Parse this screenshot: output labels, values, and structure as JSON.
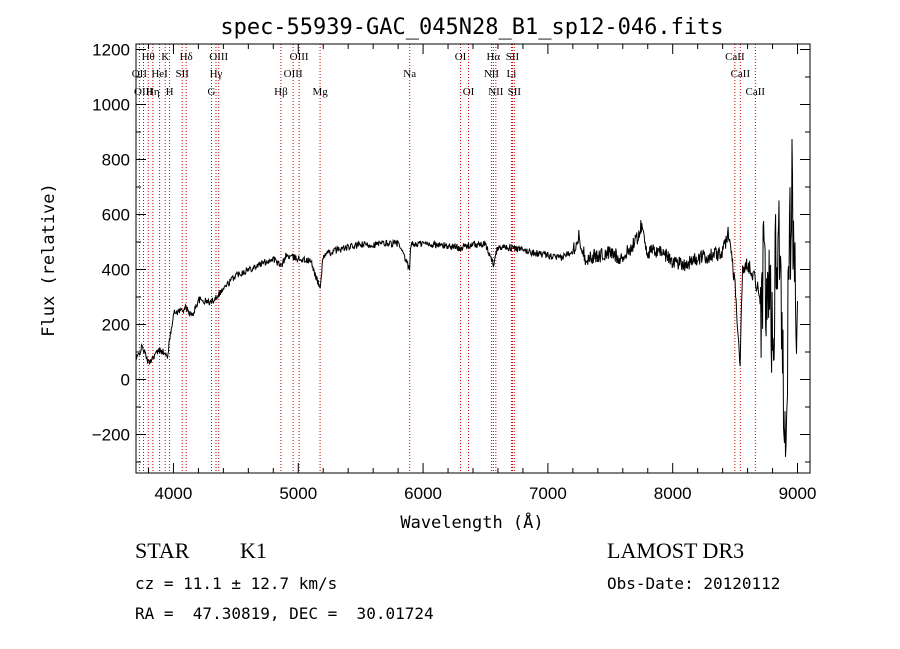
{
  "chart_data": {
    "type": "line",
    "title": "spec-55939-GAC_045N28_B1_sp12-046.fits",
    "xlabel": "Wavelength (Å)",
    "ylabel": "Flux (relative)",
    "xlim": [
      3700,
      9100
    ],
    "ylim": [
      -340,
      1220
    ],
    "x_ticks": [
      4000,
      5000,
      6000,
      7000,
      8000,
      9000
    ],
    "y_ticks": [
      -200,
      0,
      200,
      400,
      600,
      800,
      1000,
      1200
    ],
    "line_color": "#000000",
    "line_marker_color": "#cc0000",
    "grid": false,
    "series": [
      {
        "x": [
          3700,
          3750,
          3800,
          3850,
          3900,
          3950,
          4000,
          4050,
          4100,
          4150,
          4200,
          4300,
          4400,
          4500,
          4600,
          4700,
          4800,
          4862,
          4900,
          5000,
          5100,
          5175,
          5200,
          5300,
          5400,
          5500,
          5600,
          5700,
          5800,
          5893,
          5900,
          6000,
          6100,
          6200,
          6300,
          6400,
          6500,
          6563,
          6600,
          6700,
          6800,
          6900,
          7000,
          7100,
          7200,
          7250,
          7300,
          7400,
          7500,
          7600,
          7700,
          7750,
          7800,
          7900,
          8000,
          8100,
          8200,
          8300,
          8400,
          8450,
          8500,
          8540,
          8560,
          8600,
          8650,
          8700,
          8750,
          8800,
          8850,
          8900,
          8950,
          9000
        ],
        "y": [
          70,
          120,
          60,
          90,
          110,
          80,
          240,
          250,
          260,
          230,
          290,
          280,
          330,
          380,
          400,
          420,
          440,
          410,
          450,
          440,
          430,
          330,
          450,
          470,
          480,
          490,
          490,
          495,
          495,
          400,
          490,
          495,
          490,
          485,
          480,
          490,
          490,
          420,
          485,
          480,
          470,
          460,
          450,
          440,
          470,
          520,
          440,
          450,
          460,
          440,
          500,
          560,
          460,
          470,
          430,
          420,
          440,
          450,
          460,
          540,
          340,
          60,
          400,
          420,
          380,
          300,
          350,
          200,
          600,
          -200,
          700,
          200
        ]
      }
    ],
    "line_labels": [
      {
        "text": "Hθ",
        "x": 3798,
        "row": 1
      },
      {
        "text": "OII",
        "x": 3727,
        "row": 2
      },
      {
        "text": "OIII",
        "x": 3760,
        "row": 3
      },
      {
        "text": "K",
        "x": 3934,
        "row": 1
      },
      {
        "text": "HeI",
        "x": 3889,
        "row": 2
      },
      {
        "text": "Hη",
        "x": 3835,
        "row": 3
      },
      {
        "text": "SII",
        "x": 4070,
        "row": 2
      },
      {
        "text": "H",
        "x": 3969,
        "row": 3
      },
      {
        "text": "Hδ",
        "x": 4102,
        "row": 1
      },
      {
        "text": "OIII",
        "x": 4363,
        "row": 1
      },
      {
        "text": "Hγ",
        "x": 4341,
        "row": 2
      },
      {
        "text": "G",
        "x": 4305,
        "row": 3
      },
      {
        "text": "OIII",
        "x": 5007,
        "row": 1
      },
      {
        "text": "OIII",
        "x": 4959,
        "row": 2
      },
      {
        "text": "Hβ",
        "x": 4861,
        "row": 3
      },
      {
        "text": "Mg",
        "x": 5175,
        "row": 3
      },
      {
        "text": "Na",
        "x": 5893,
        "row": 2
      },
      {
        "text": "OI",
        "x": 6300,
        "row": 1
      },
      {
        "text": "OI",
        "x": 6364,
        "row": 3
      },
      {
        "text": "Hα",
        "x": 6563,
        "row": 1
      },
      {
        "text": "SII",
        "x": 6716,
        "row": 1
      },
      {
        "text": "NII",
        "x": 6548,
        "row": 2
      },
      {
        "text": "Li",
        "x": 6708,
        "row": 2
      },
      {
        "text": "NII",
        "x": 6583,
        "row": 3
      },
      {
        "text": "SII",
        "x": 6731,
        "row": 3
      },
      {
        "text": "CaII",
        "x": 8498,
        "row": 1
      },
      {
        "text": "CaII",
        "x": 8542,
        "row": 2
      },
      {
        "text": "CaII",
        "x": 8662,
        "row": 3
      }
    ]
  },
  "info": {
    "class": "STAR",
    "subclass": "K1",
    "survey": "LAMOST DR3",
    "cz": "cz = 11.1 ± 12.7 km/s",
    "obs_date": "Obs-Date: 20120112",
    "coords": "RA =  47.30819, DEC =  30.01724"
  }
}
